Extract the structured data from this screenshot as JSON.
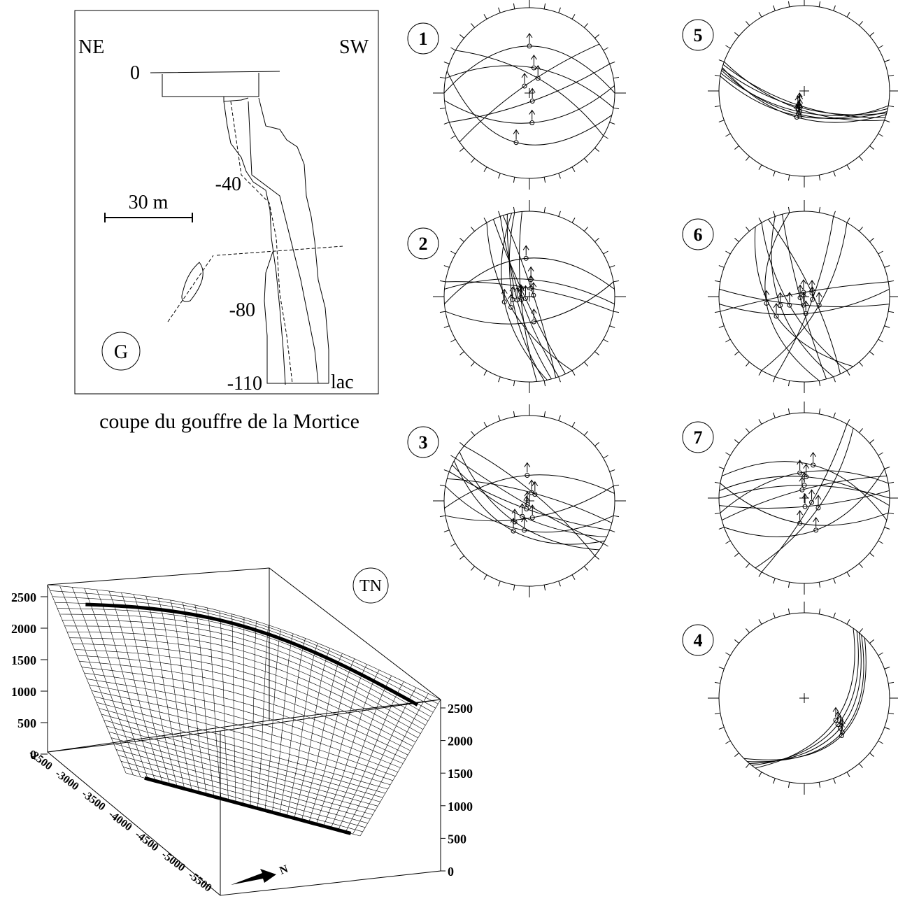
{
  "section": {
    "left_label": "NE",
    "right_label": "SW",
    "depths": [
      "0",
      "-40",
      "-80",
      "-110"
    ],
    "lake_label": "lac",
    "scale_label": "30 m",
    "panel_label": "G",
    "caption": "coupe du gouffre de la Mortice"
  },
  "stereonets": [
    {
      "label": "1"
    },
    {
      "label": "5"
    },
    {
      "label": "2"
    },
    {
      "label": "6"
    },
    {
      "label": "3"
    },
    {
      "label": "7"
    },
    {
      "label": "4"
    }
  ],
  "surface_plot": {
    "panel_label": "TN",
    "z_ticks": [
      "2500",
      "2000",
      "1500",
      "1000",
      "500",
      "0"
    ],
    "right_ticks": [
      "2500",
      "2000",
      "1500",
      "1000",
      "500",
      "0"
    ],
    "x_ticks": [
      "-2500",
      "-3000",
      "-3500",
      "-4000",
      "-4500",
      "-5000",
      "-5500"
    ],
    "north_label": "N"
  }
}
